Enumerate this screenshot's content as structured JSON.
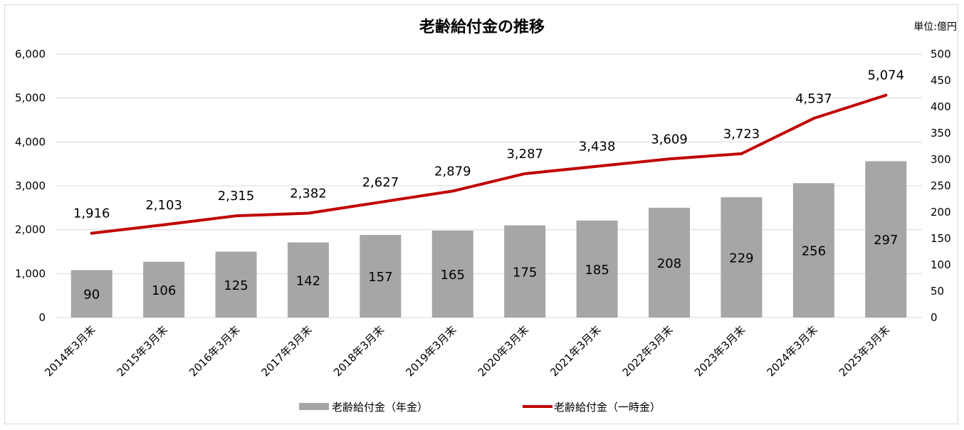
{
  "chart_data": {
    "type": "bar+line",
    "title": "老齢給付金の推移",
    "unit_label": "単位:億円",
    "categories": [
      "2014年3月末",
      "2015年3月末",
      "2016年3月末",
      "2017年3月末",
      "2018年3月末",
      "2019年3月末",
      "2020年3月末",
      "2021年3月末",
      "2022年3月末",
      "2023年3月末",
      "2024年3月末",
      "2025年3月末"
    ],
    "bar_series": {
      "name": "老齢給付金（年金）",
      "axis": "left",
      "color": "#a6a6a6",
      "values": [
        1080,
        1270,
        1500,
        1710,
        1880,
        1980,
        2100,
        2210,
        2500,
        2740,
        3060,
        3560
      ],
      "data_labels": [
        "90",
        "106",
        "125",
        "142",
        "157",
        "165",
        "175",
        "185",
        "208",
        "229",
        "256",
        "297"
      ]
    },
    "line_series": {
      "name": "老齢給付金（一時金）",
      "axis": "right",
      "color": "#c00000",
      "values": [
        160,
        176,
        193,
        198,
        219,
        240,
        273,
        287,
        301,
        311,
        378,
        422
      ],
      "data_labels": [
        "1,916",
        "2,103",
        "2,315",
        "2,382",
        "2,627",
        "2,879",
        "3,287",
        "3,438",
        "3,609",
        "3,723",
        "4,537",
        "5,074"
      ]
    },
    "y_left": {
      "min": 0,
      "max": 6000,
      "step": 1000,
      "tick_labels": [
        "0",
        "1,000",
        "2,000",
        "3,000",
        "4,000",
        "5,000",
        "6,000"
      ]
    },
    "y_right": {
      "min": 0,
      "max": 500,
      "step": 50,
      "tick_labels": [
        "0",
        "50",
        "100",
        "150",
        "200",
        "250",
        "300",
        "350",
        "400",
        "450",
        "500"
      ]
    },
    "grid": true,
    "legend_position": "bottom"
  }
}
